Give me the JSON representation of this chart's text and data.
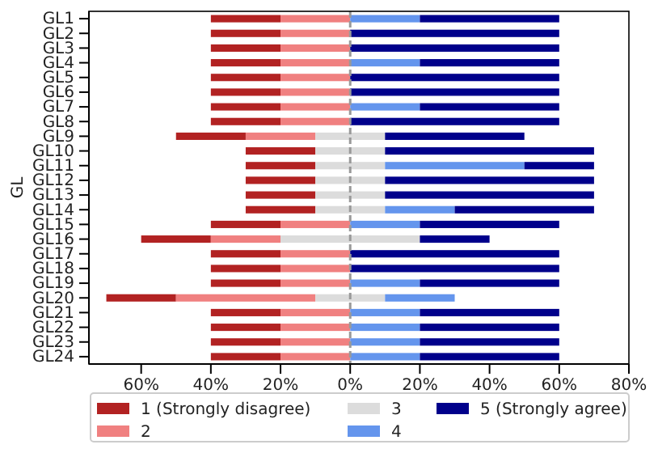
{
  "chart_data": {
    "type": "bar",
    "orientation": "horizontal",
    "ylabel": "GL",
    "categories": [
      "GL1",
      "GL2",
      "GL3",
      "GL4",
      "GL5",
      "GL6",
      "GL7",
      "GL8",
      "GL9",
      "GL10",
      "GL11",
      "GL12",
      "GL13",
      "GL14",
      "GL15",
      "GL16",
      "GL17",
      "GL18",
      "GL19",
      "GL20",
      "GL21",
      "GL22",
      "GL23",
      "GL24"
    ],
    "series": [
      {
        "name": "1 (Strongly disagree)",
        "color": "#b22222",
        "values": [
          20,
          20,
          20,
          20,
          20,
          20,
          20,
          20,
          20,
          20,
          20,
          20,
          20,
          20,
          20,
          20,
          20,
          20,
          20,
          20,
          20,
          20,
          20,
          20
        ],
        "base": [
          -40,
          -40,
          -40,
          -40,
          -40,
          -40,
          -40,
          -40,
          -50,
          -30,
          -30,
          -30,
          -30,
          -30,
          -40,
          -60,
          -40,
          -40,
          -40,
          -70,
          -40,
          -40,
          -40,
          -40
        ]
      },
      {
        "name": "2",
        "color": "#f08080",
        "values": [
          20,
          20,
          20,
          20,
          20,
          20,
          20,
          20,
          20,
          null,
          null,
          null,
          null,
          null,
          20,
          20,
          20,
          20,
          20,
          40,
          20,
          20,
          20,
          20
        ],
        "base": [
          -20,
          -20,
          -20,
          -20,
          -20,
          -20,
          -20,
          -20,
          -30,
          null,
          null,
          null,
          null,
          null,
          -20,
          -40,
          -20,
          -20,
          -20,
          -50,
          -20,
          -20,
          -20,
          -20
        ]
      },
      {
        "name": "3",
        "color": "#dcdcdc",
        "values": [
          null,
          null,
          null,
          null,
          null,
          null,
          null,
          null,
          20,
          20,
          20,
          20,
          20,
          20,
          null,
          40,
          null,
          null,
          null,
          20,
          null,
          null,
          null,
          null
        ],
        "base": [
          null,
          null,
          null,
          null,
          null,
          null,
          null,
          null,
          -10,
          -10,
          -10,
          -10,
          -10,
          -10,
          null,
          -20,
          null,
          null,
          null,
          -10,
          null,
          null,
          null,
          null
        ]
      },
      {
        "name": "4",
        "color": "#6495ed",
        "values": [
          20,
          null,
          null,
          20,
          null,
          null,
          20,
          null,
          null,
          null,
          40,
          null,
          null,
          20,
          20,
          null,
          null,
          null,
          20,
          20,
          20,
          20,
          20,
          20
        ],
        "base": [
          0,
          null,
          null,
          0,
          null,
          null,
          0,
          null,
          null,
          null,
          10,
          null,
          null,
          10,
          0,
          null,
          null,
          null,
          0,
          10,
          0,
          0,
          0,
          0
        ]
      },
      {
        "name": "5 (Strongly agree)",
        "color": "#00008b",
        "values": [
          40,
          60,
          60,
          40,
          60,
          60,
          40,
          60,
          40,
          60,
          20,
          60,
          60,
          40,
          40,
          20,
          60,
          60,
          40,
          null,
          40,
          40,
          40,
          40
        ],
        "base": [
          20,
          0,
          0,
          20,
          0,
          0,
          20,
          0,
          10,
          10,
          50,
          10,
          10,
          30,
          20,
          20,
          0,
          0,
          20,
          null,
          20,
          20,
          20,
          20
        ]
      }
    ],
    "xlim": [
      -75,
      80
    ],
    "xticks": [
      {
        "value": -60,
        "label": "60%"
      },
      {
        "value": -40,
        "label": "40%"
      },
      {
        "value": -20,
        "label": "20%"
      },
      {
        "value": 0,
        "label": "0%"
      },
      {
        "value": 20,
        "label": "20%"
      },
      {
        "value": 40,
        "label": "40%"
      },
      {
        "value": 60,
        "label": "60%"
      },
      {
        "value": 80,
        "label": "80%"
      }
    ],
    "ref_lines": [
      {
        "axis": "x",
        "value": 0,
        "color": "#999999",
        "line_style": "dashed"
      }
    ],
    "legend": "bottom"
  }
}
